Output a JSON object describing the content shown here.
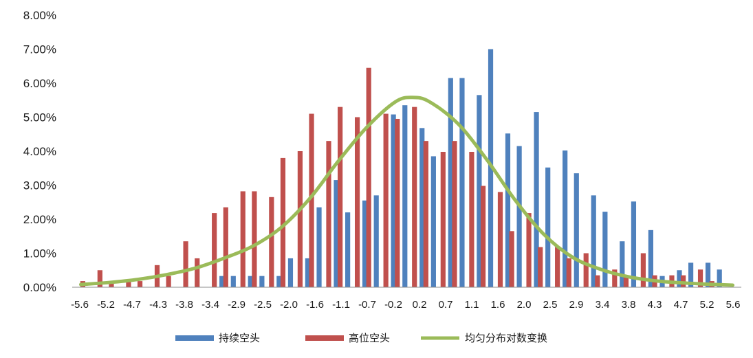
{
  "chart_data": {
    "type": "bar",
    "ylim": [
      0,
      0.08
    ],
    "y_ticks": [
      "0.00%",
      "1.00%",
      "2.00%",
      "3.00%",
      "4.00%",
      "5.00%",
      "6.00%",
      "7.00%",
      "8.00%"
    ],
    "x_tick_labels": [
      "-5.6",
      "-5.2",
      "-4.7",
      "-4.3",
      "-3.8",
      "-3.4",
      "-2.9",
      "-2.5",
      "-2.0",
      "-1.6",
      "-1.1",
      "-0.7",
      "-0.2",
      "0.2",
      "0.7",
      "1.1",
      "1.6",
      "2.0",
      "2.5",
      "2.9",
      "3.4",
      "3.8",
      "4.3",
      "4.7",
      "5.2",
      "5.6"
    ],
    "legend_position": "bottom",
    "grid": false,
    "series": [
      {
        "name": "持续空头",
        "type": "bar",
        "color": "#4F81BD",
        "x": [
          -5.6,
          -5.3,
          -5.1,
          -4.8,
          -4.6,
          -4.3,
          -4.1,
          -3.8,
          -3.6,
          -3.3,
          -3.1,
          -2.8,
          -2.6,
          -2.3,
          -2.1,
          -1.8,
          -1.6,
          -1.3,
          -1.1,
          -0.8,
          -0.6,
          -0.3,
          -0.1,
          0.2,
          0.4,
          0.7,
          0.9,
          1.2,
          1.4,
          1.7,
          1.9,
          2.2,
          2.4,
          2.7,
          2.9,
          3.2,
          3.4,
          3.7,
          3.9,
          4.2,
          4.4,
          4.7,
          4.9,
          5.2,
          5.4
        ],
        "values": [
          0,
          0,
          0,
          0,
          0,
          0,
          0,
          0,
          0,
          0.0033,
          0.0033,
          0.0033,
          0.0033,
          0.0033,
          0.0085,
          0.0085,
          0.0235,
          0.0315,
          0.022,
          0.0255,
          0.027,
          0.0508,
          0.0535,
          0.0468,
          0.0385,
          0.0615,
          0.0615,
          0.0565,
          0.07,
          0.0452,
          0.0415,
          0.0515,
          0.0352,
          0.0402,
          0.0335,
          0.027,
          0.0222,
          0.0135,
          0.0252,
          0.0168,
          0.0033,
          0.005,
          0.0072,
          0.0072,
          0.0052
        ]
      },
      {
        "name": "高位空头",
        "type": "bar",
        "color": "#C0504D",
        "x": [
          -5.6,
          -5.3,
          -5.1,
          -4.8,
          -4.6,
          -4.3,
          -4.1,
          -3.8,
          -3.6,
          -3.3,
          -3.1,
          -2.8,
          -2.6,
          -2.3,
          -2.1,
          -1.8,
          -1.6,
          -1.3,
          -1.1,
          -0.8,
          -0.6,
          -0.3,
          -0.1,
          0.2,
          0.4,
          0.7,
          0.9,
          1.2,
          1.4,
          1.7,
          1.9,
          2.2,
          2.4,
          2.7,
          2.9,
          3.2,
          3.4,
          3.7,
          3.9,
          4.2,
          4.4,
          4.7,
          4.9,
          5.2,
          5.4
        ],
        "values": [
          0.0018,
          0.005,
          0.0018,
          0.0018,
          0.0018,
          0.0065,
          0.0033,
          0.0135,
          0.0085,
          0.0218,
          0.0235,
          0.0282,
          0.0282,
          0.0265,
          0.038,
          0.04,
          0.051,
          0.043,
          0.053,
          0.05,
          0.0645,
          0.051,
          0.0495,
          0.053,
          0.043,
          0.0398,
          0.043,
          0.0398,
          0.0298,
          0.028,
          0.0165,
          0.0218,
          0.0118,
          0.0118,
          0.0085,
          0.01,
          0.0035,
          0.0052,
          0.0035,
          0.01,
          0.0035,
          0.0035,
          0.0035,
          0.0052,
          0.0018
        ]
      },
      {
        "name": "均匀分布对数变换",
        "type": "line",
        "color": "#9BBB59",
        "x": [
          -5.7,
          -5.2,
          -4.7,
          -4.2,
          -3.7,
          -3.2,
          -2.7,
          -2.2,
          -1.7,
          -1.2,
          -0.7,
          -0.2,
          0.1,
          0.4,
          0.9,
          1.4,
          1.9,
          2.4,
          2.9,
          3.4,
          3.9,
          4.4,
          4.9,
          5.4,
          5.7
        ],
        "values": [
          0.0008,
          0.0014,
          0.0023,
          0.0037,
          0.0056,
          0.0085,
          0.012,
          0.0175,
          0.026,
          0.037,
          0.047,
          0.0545,
          0.0558,
          0.0545,
          0.048,
          0.0375,
          0.0255,
          0.0155,
          0.0088,
          0.0052,
          0.003,
          0.0018,
          0.0012,
          0.0008,
          0.0006
        ]
      }
    ]
  }
}
